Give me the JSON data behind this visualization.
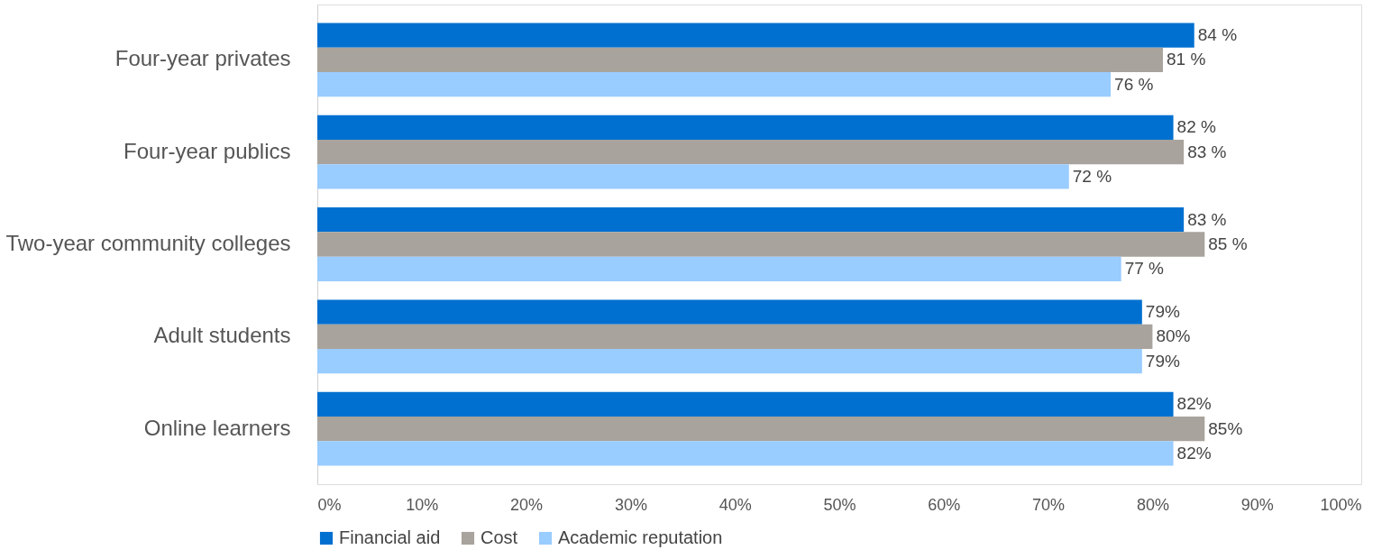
{
  "chart_data": {
    "type": "bar",
    "orientation": "horizontal",
    "categories": [
      "Four-year privates",
      "Four-year publics",
      "Two-year community colleges",
      "Adult students",
      "Online learners"
    ],
    "series": [
      {
        "name": "Financial aid",
        "color": "#0070d0",
        "values": [
          84,
          82,
          83,
          79,
          82
        ],
        "value_labels": [
          "84 %",
          "82 %",
          "83 %",
          "79%",
          "82%"
        ]
      },
      {
        "name": "Cost",
        "color": "#a8a39c",
        "values": [
          81,
          83,
          85,
          80,
          85
        ],
        "value_labels": [
          "81 %",
          "83 %",
          "85 %",
          "80%",
          "85%"
        ]
      },
      {
        "name": "Academic reputation",
        "color": "#99ccff",
        "values": [
          76,
          72,
          77,
          79,
          82
        ],
        "value_labels": [
          "76 %",
          "72 %",
          "77 %",
          "79%",
          "82%"
        ]
      }
    ],
    "xlim": [
      0,
      100
    ],
    "xticks": [
      {
        "value": 0,
        "label": "0%"
      },
      {
        "value": 10,
        "label": "10%"
      },
      {
        "value": 20,
        "label": "20%"
      },
      {
        "value": 30,
        "label": "30%"
      },
      {
        "value": 40,
        "label": "40%"
      },
      {
        "value": 50,
        "label": "50%"
      },
      {
        "value": 60,
        "label": "60%"
      },
      {
        "value": 70,
        "label": "70%"
      },
      {
        "value": 80,
        "label": "80%"
      },
      {
        "value": 90,
        "label": "90%"
      },
      {
        "value": 100,
        "label": "100%"
      }
    ],
    "grid": false,
    "legend": "bottom"
  }
}
